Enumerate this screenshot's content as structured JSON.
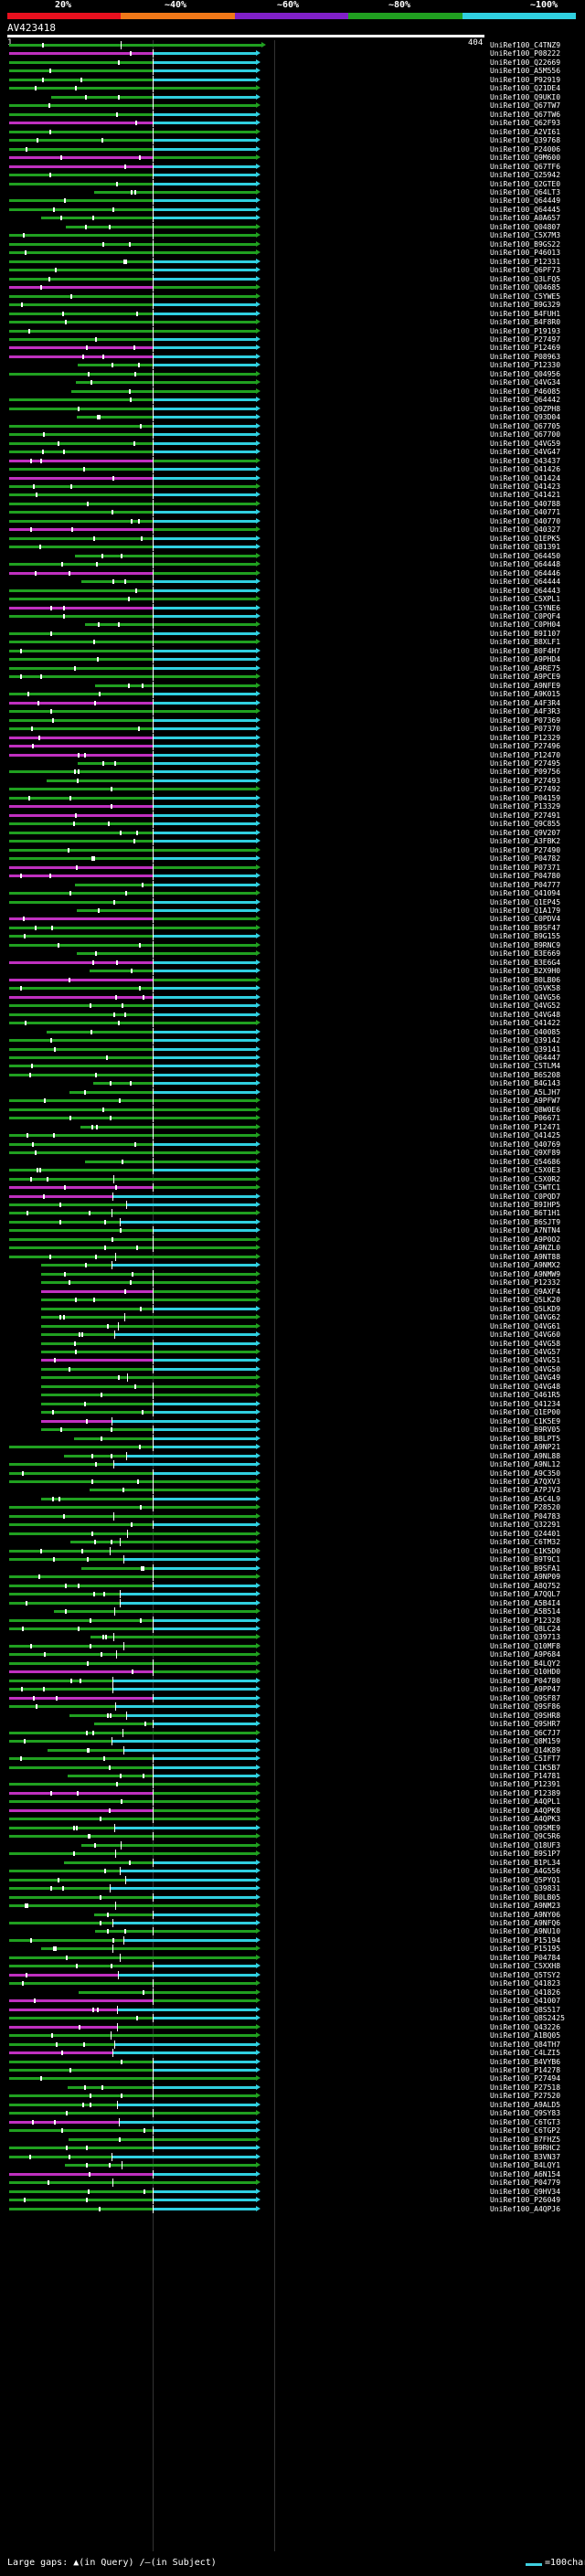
{
  "query": {
    "name": "AV423418",
    "start": "1",
    "end": "404"
  },
  "percent_scale": {
    "labels": [
      "20%",
      "~40%",
      "~60%",
      "~80%",
      "~100%"
    ],
    "colors": [
      "#e8101e",
      "#f07818",
      "#8020c8",
      "#20a020",
      "#30d0e0"
    ]
  },
  "legend": {
    "large_gaps": "Large gaps:",
    "query_gap": "▲(in Query)",
    "subject_gap": "/–(in Subject)",
    "scale_text": "=100char."
  },
  "hits": [
    "UniRef100_C4TNZ9",
    "UniRef100_P08222",
    "UniRef100_Q22669",
    "UniRef100_A5M556",
    "UniRef100_P92919",
    "UniRef100_Q21DE4",
    "UniRef100_Q9UKI0",
    "UniRef100_Q67TW7",
    "UniRef100_Q67TW6",
    "UniRef100_Q62F93",
    "UniRef100_A2VI61",
    "UniRef100_Q39768",
    "UniRef100_P24006",
    "UniRef100_Q9M600",
    "UniRef100_Q67TF6",
    "UniRef100_Q25942",
    "UniRef100_Q2GTE0",
    "UniRef100_Q64LT3",
    "UniRef100_Q64449",
    "UniRef100_Q64445",
    "UniRef100_A0A657",
    "UniRef100_Q04807",
    "UniRef100_C5X7M3",
    "UniRef100_B9GS22",
    "UniRef100_P46013",
    "UniRef100_P12331",
    "UniRef100_Q6PF73",
    "UniRef100_Q3LFQ5",
    "UniRef100_Q04685",
    "UniRef100_C5YWE5",
    "UniRef100_B9G329",
    "UniRef100_B4FUH1",
    "UniRef100_B4F8R0",
    "UniRef100_P19193",
    "UniRef100_P27497",
    "UniRef100_P12469",
    "UniRef100_P08963",
    "UniRef100_P12330",
    "UniRef100_Q04956",
    "UniRef100_Q4VG34",
    "UniRef100_P46085",
    "UniRef100_Q64442",
    "UniRef100_Q9ZPH8",
    "UniRef100_Q93D04",
    "UniRef100_Q67705",
    "UniRef100_Q67700",
    "UniRef100_Q4VG59",
    "UniRef100_Q4VG47",
    "UniRef100_Q43437",
    "UniRef100_Q41426",
    "UniRef100_Q41424",
    "UniRef100_Q41423",
    "UniRef100_Q41421",
    "UniRef100_Q40788",
    "UniRef100_Q40771",
    "UniRef100_Q40770",
    "UniRef100_Q40327",
    "UniRef100_Q1EPK5",
    "UniRef100_Q81391",
    "UniRef100_Q64450",
    "UniRef100_Q64448",
    "UniRef100_Q64446",
    "UniRef100_Q64444",
    "UniRef100_Q64443",
    "UniRef100_C5XPL1",
    "UniRef100_C5YNE6",
    "UniRef100_C0PQF4",
    "UniRef100_C0PH04",
    "UniRef100_B9I107",
    "UniRef100_B8XLF1",
    "UniRef100_B0F4H7",
    "UniRef100_A9PHD4",
    "UniRef100_A9RE75",
    "UniRef100_A9PCE9",
    "UniRef100_A9NFE9",
    "UniRef100_A9K015",
    "UniRef100_A4F3R4",
    "UniRef100_A4F3R3",
    "UniRef100_P07369",
    "UniRef100_P07370",
    "UniRef100_P12329",
    "UniRef100_P27496",
    "UniRef100_P12470",
    "UniRef100_P27495",
    "UniRef100_P09756",
    "UniRef100_P27493",
    "UniRef100_P27492",
    "UniRef100_P04159",
    "UniRef100_P13329",
    "UniRef100_P27491",
    "UniRef100_Q9C855",
    "UniRef100_Q9V207",
    "UniRef100_A3FBK2",
    "UniRef100_P27490",
    "UniRef100_P04782",
    "UniRef100_P07371",
    "UniRef100_P04780",
    "UniRef100_P04777",
    "UniRef100_Q41094",
    "UniRef100_Q1EP45",
    "UniRef100_Q1A179",
    "UniRef100_C0PDV4",
    "UniRef100_B9SF47",
    "UniRef100_B9G155",
    "UniRef100_B9RNC9",
    "UniRef100_B3E669",
    "UniRef100_B3E6G4",
    "UniRef100_B2X9H0",
    "UniRef100_B0LB06",
    "UniRef100_Q5VK58",
    "UniRef100_Q4VG56",
    "UniRef100_Q4VG52",
    "UniRef100_Q4VG48",
    "UniRef100_Q41422",
    "UniRef100_Q40085",
    "UniRef100_Q39142",
    "UniRef100_Q39141",
    "UniRef100_Q64447",
    "UniRef100_C5TLM4",
    "UniRef100_B6S208",
    "UniRef100_B4G143",
    "UniRef100_A5LJH7",
    "UniRef100_A9PFW7",
    "UniRef100_Q8W0E6",
    "UniRef100_P06671",
    "UniRef100_P12471",
    "UniRef100_Q41425",
    "UniRef100_Q40769",
    "UniRef100_Q9XF89",
    "UniRef100_Q54686",
    "UniRef100_C5X0E3",
    "UniRef100_C5X0R2",
    "UniRef100_C5WTC1",
    "UniRef100_C0PQD7",
    "UniRef100_B9IHP5",
    "UniRef100_B6T1H1",
    "UniRef100_B6SJT9",
    "UniRef100_A7NTN4",
    "UniRef100_A9P0O2",
    "UniRef100_A9NZL0",
    "UniRef100_A9NT88",
    "UniRef100_A9NMX2",
    "UniRef100_A9NMW9",
    "UniRef100_P12332",
    "UniRef100_Q9AXF4",
    "UniRef100_Q5LK20",
    "UniRef100_Q5LKD9",
    "UniRef100_Q4VG62",
    "UniRef100_Q4VG61",
    "UniRef100_Q4VG60",
    "UniRef100_Q4VG58",
    "UniRef100_Q4VG57",
    "UniRef100_Q4VG51",
    "UniRef100_Q4VG50",
    "UniRef100_Q4VG49",
    "UniRef100_Q4VG48",
    "UniRef100_Q461R5",
    "UniRef100_Q41234",
    "UniRef100_Q1EP00",
    "UniRef100_C1K5E9",
    "UniRef100_B9RV05",
    "UniRef100_B8LPT5",
    "UniRef100_A9NP21",
    "UniRef100_A9NL88",
    "UniRef100_A9NL12",
    "UniRef100_A9C350",
    "UniRef100_A7QXV3",
    "UniRef100_A7PJV3",
    "UniRef100_A5C4L9",
    "UniRef100_P28520",
    "UniRef100_P04783",
    "UniRef100_Q32291",
    "UniRef100_Q24401",
    "UniRef100_C6TM32",
    "UniRef100_C1K5D0",
    "UniRef100_B9T9C1",
    "UniRef100_B9SFA1",
    "UniRef100_A9NP09",
    "UniRef100_A8Q752",
    "UniRef100_A7QQL7",
    "UniRef100_A5B4I4",
    "UniRef100_A5B514",
    "UniRef100_P12328",
    "UniRef100_Q8LC24",
    "UniRef100_Q39713",
    "UniRef100_Q10MF8",
    "UniRef100_A9P684",
    "UniRef100_B4LQY2",
    "UniRef100_Q10HD0",
    "UniRef100_P04780",
    "UniRef100_A9PP47",
    "UniRef100_Q9SF87",
    "UniRef100_Q9SF86",
    "UniRef100_Q9SHR8",
    "UniRef100_Q9SHR7",
    "UniRef100_Q6C7J7",
    "UniRef100_Q8M159",
    "UniRef100_Q14K89",
    "UniRef100_C5IFT7",
    "UniRef100_C1K5B7",
    "UniRef100_P14781",
    "UniRef100_P12391",
    "UniRef100_P12389",
    "UniRef100_A4QPL1",
    "UniRef100_A4QPK8",
    "UniRef100_A4QPK3",
    "UniRef100_Q9SME9",
    "UniRef100_Q9C5R6",
    "UniRef100_Q18UF3",
    "UniRef100_B9S1P7",
    "UniRef100_B1PL34",
    "UniRef100_A4G556",
    "UniRef100_Q5PYQ1",
    "UniRef100_Q39831",
    "UniRef100_B0LB05",
    "UniRef100_A9NM23",
    "UniRef100_A9NY06",
    "UniRef100_A9NFQ6",
    "UniRef100_A9NU10",
    "UniRef100_P15194",
    "UniRef100_P15195",
    "UniRef100_P04784",
    "UniRef100_C5XXH8",
    "UniRef100_Q5TSY2",
    "UniRef100_Q41823",
    "UniRef100_Q41826",
    "UniRef100_Q41007",
    "UniRef100_Q8S517",
    "UniRef100_Q8S2425",
    "UniRef100_Q43226",
    "UniRef100_A1BQ05",
    "UniRef100_Q84TH7",
    "UniRef100_C4LZI5",
    "UniRef100_B4VYB6",
    "UniRef100_P14278",
    "UniRef100_P27494",
    "UniRef100_P27518",
    "UniRef100_P27520",
    "UniRef100_A9ALD5",
    "UniRef100_Q9SY83",
    "UniRef100_C6TGT3",
    "UniRef100_C6TGP2",
    "UniRef100_B7FHZ5",
    "UniRef100_B9RHC2",
    "UniRef100_B3VN37",
    "UniRef100_B4LQY1",
    "UniRef100_A6N154",
    "UniRef100_P04779",
    "UniRef100_Q9HV34",
    "UniRef100_P26049",
    "UniRef100_A4QPJ6"
  ]
}
